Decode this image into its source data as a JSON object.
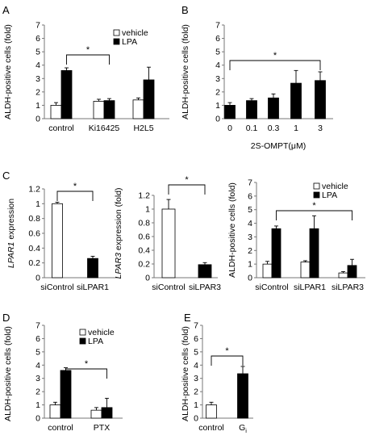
{
  "figure": {
    "panel_labels": [
      "A",
      "B",
      "C",
      "D",
      "E"
    ],
    "legend": {
      "vehicle": "vehicle",
      "lpa": "LPA"
    }
  },
  "chart_data": [
    {
      "id": "A",
      "type": "bar",
      "ylabel": "ALDH-positive cells (fold)",
      "xlabel": "",
      "ylim": [
        0,
        7
      ],
      "yticks": [
        0,
        1,
        2,
        3,
        4,
        5,
        6,
        7
      ],
      "categories": [
        "control",
        "Ki16425",
        "H2L5"
      ],
      "series": [
        {
          "name": "vehicle",
          "values": [
            1.0,
            1.3,
            1.4
          ],
          "errors": [
            0.2,
            0.15,
            0.15
          ]
        },
        {
          "name": "LPA",
          "values": [
            3.6,
            1.35,
            2.9
          ],
          "errors": [
            0.2,
            0.15,
            0.95
          ]
        }
      ],
      "significance": [
        {
          "label": "*"
        }
      ],
      "legend": "top-right"
    },
    {
      "id": "B",
      "type": "bar",
      "ylabel": "ALDH-positive cells (fold)",
      "xlabel": "2S-OMPT(μM)",
      "ylim": [
        0,
        7
      ],
      "yticks": [
        0,
        1,
        2,
        3,
        4,
        5,
        6,
        7
      ],
      "categories": [
        "0",
        "0.1",
        "0.3",
        "1",
        "3"
      ],
      "series": [
        {
          "name": "",
          "values": [
            1.0,
            1.35,
            1.55,
            2.65,
            2.85
          ],
          "errors": [
            0.2,
            0.15,
            0.3,
            0.95,
            0.65
          ]
        }
      ],
      "significance": [
        {
          "label": "*"
        }
      ]
    },
    {
      "id": "C1",
      "type": "bar",
      "ylabel_italic": "LPAR1",
      "ylabel_rest": " expression",
      "ylim": [
        0,
        1.2
      ],
      "yticks": [
        0,
        0.2,
        0.4,
        0.6,
        0.8,
        1,
        1.2
      ],
      "categories": [
        "siControl",
        "siLPAR1"
      ],
      "series": [
        {
          "name": "",
          "values": [
            1.0,
            0.26
          ],
          "errors": [
            0.02,
            0.03
          ]
        }
      ],
      "bar_fill": [
        "white",
        "black"
      ],
      "significance": [
        {
          "label": "*"
        }
      ]
    },
    {
      "id": "C2",
      "type": "bar",
      "ylabel_italic": "LPAR3",
      "ylabel_rest": " expression (fold)",
      "ylim": [
        0,
        1.2
      ],
      "yticks": [
        0,
        0.2,
        0.4,
        0.6,
        0.8,
        1,
        1.2
      ],
      "categories": [
        "siControl",
        "siLPAR3"
      ],
      "series": [
        {
          "name": "",
          "values": [
            1.0,
            0.19
          ],
          "errors": [
            0.14,
            0.03
          ]
        }
      ],
      "bar_fill": [
        "white",
        "black"
      ],
      "significance": [
        {
          "label": "*"
        }
      ]
    },
    {
      "id": "C3",
      "type": "bar",
      "ylabel": "ALDH-positive cells (fold)",
      "ylim": [
        0,
        7
      ],
      "yticks": [
        0,
        1,
        2,
        3,
        4,
        5,
        6,
        7
      ],
      "categories": [
        "siControl",
        "siLPAR1",
        "siLPAR3"
      ],
      "series": [
        {
          "name": "vehicle",
          "values": [
            1.0,
            1.15,
            0.35
          ],
          "errors": [
            0.2,
            0.1,
            0.1
          ]
        },
        {
          "name": "LPA",
          "values": [
            3.6,
            3.6,
            0.9
          ],
          "errors": [
            0.2,
            0.95,
            0.45
          ]
        }
      ],
      "significance": [
        {
          "label": "*"
        }
      ],
      "legend": "top-right"
    },
    {
      "id": "D",
      "type": "bar",
      "ylabel": "ALDH-positive cells (fold)",
      "ylim": [
        0,
        7
      ],
      "yticks": [
        0,
        1,
        2,
        3,
        4,
        5,
        6,
        7
      ],
      "categories": [
        "control",
        "PTX"
      ],
      "series": [
        {
          "name": "vehicle",
          "values": [
            1.0,
            0.6
          ],
          "errors": [
            0.2,
            0.2
          ]
        },
        {
          "name": "LPA",
          "values": [
            3.6,
            0.8
          ],
          "errors": [
            0.2,
            0.7
          ]
        }
      ],
      "significance": [
        {
          "label": "*"
        }
      ],
      "legend": "top-right"
    },
    {
      "id": "E",
      "type": "bar",
      "ylabel": "ALDH-positive cells (fold)",
      "ylim": [
        0,
        7
      ],
      "yticks": [
        0,
        1,
        2,
        3,
        4,
        5,
        6,
        7
      ],
      "categories": [
        "control",
        "Gi"
      ],
      "series": [
        {
          "name": "",
          "values": [
            1.0,
            3.35
          ],
          "errors": [
            0.2,
            0.55
          ]
        }
      ],
      "bar_fill": [
        "white",
        "black"
      ],
      "significance": [
        {
          "label": "*"
        }
      ]
    }
  ]
}
